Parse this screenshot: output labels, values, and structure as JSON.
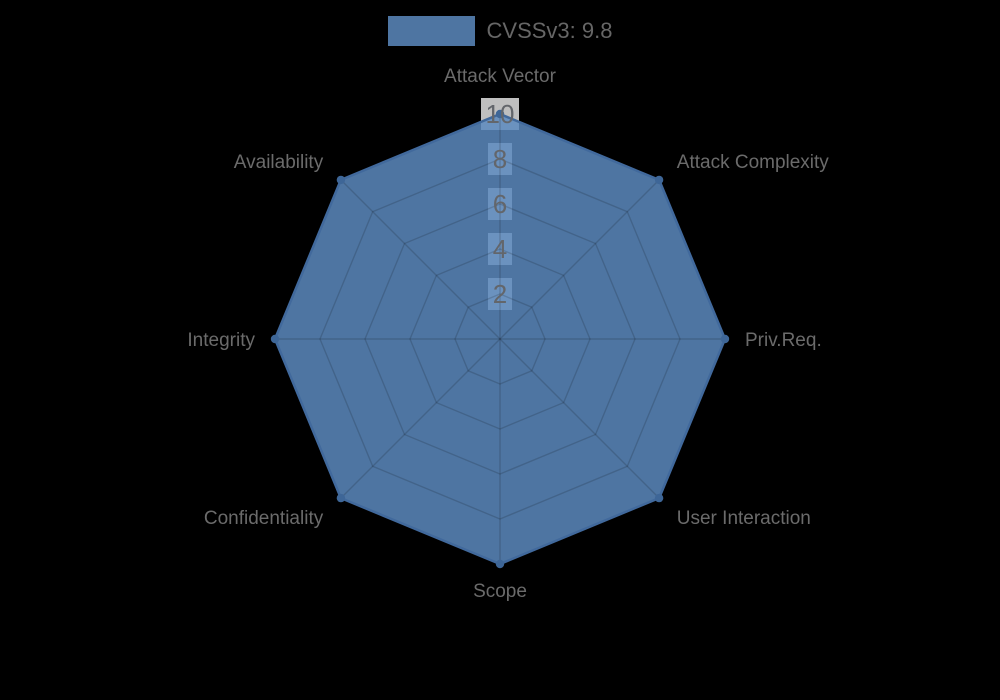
{
  "page": {
    "background": "#000000"
  },
  "legend": {
    "label": "CVSSv3: 9.8",
    "text_color": "#666666"
  },
  "chart_data": {
    "type": "radar",
    "axes": [
      "Attack Vector",
      "Attack Complexity",
      "Priv.Req.",
      "User Interaction",
      "Scope",
      "Confidentiality",
      "Integrity",
      "Availability"
    ],
    "series": [
      {
        "name": "CVSSv3: 9.8",
        "values": [
          10,
          10,
          10,
          10,
          10,
          10,
          10,
          10
        ],
        "fill_color": "rgba(92,138,190,0.85)",
        "border_color": "#41699c",
        "point_color": "#3e6697"
      }
    ],
    "scale": {
      "min": 0,
      "max": 10,
      "tick_values": [
        2,
        4,
        6,
        8,
        10
      ],
      "ring_shape": "octagon"
    },
    "legend_position": "top",
    "grid": true,
    "colors": {
      "grid_line": "rgba(0,0,0,0.15)",
      "axis_label": "#6b6b6b",
      "tick_label": "#63666b",
      "tick_backdrop": "rgba(255,255,255,0.75)"
    }
  }
}
